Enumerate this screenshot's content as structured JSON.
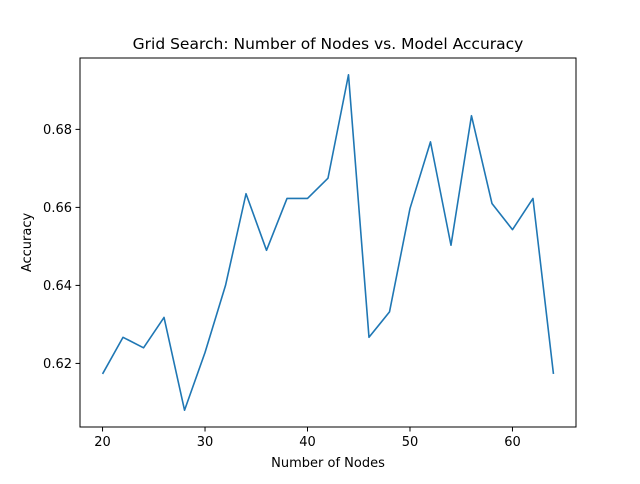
{
  "chart_data": {
    "type": "line",
    "title": "Grid Search: Number of Nodes vs. Model Accuracy",
    "xlabel": "Number of Nodes",
    "ylabel": "Accuracy",
    "xlim": [
      17.8,
      66.2
    ],
    "ylim": [
      0.6037,
      0.6983
    ],
    "xticks": [
      20,
      30,
      40,
      50,
      60
    ],
    "yticks": [
      0.62,
      0.64,
      0.66,
      0.68
    ],
    "grid": false,
    "line_color": "#1f77b4",
    "series": [
      {
        "x": [
          20,
          22,
          24,
          26,
          28,
          30,
          32,
          34,
          36,
          38,
          40,
          42,
          44,
          46,
          48,
          50,
          52,
          54,
          56,
          58,
          60,
          62,
          64
        ],
        "values": [
          0.6173,
          0.6267,
          0.624,
          0.6318,
          0.608,
          0.6228,
          0.64,
          0.6635,
          0.649,
          0.6623,
          0.6623,
          0.6675,
          0.694,
          0.6267,
          0.6332,
          0.6597,
          0.6768,
          0.6503,
          0.6835,
          0.661,
          0.6543,
          0.6623,
          0.6173
        ]
      }
    ]
  }
}
